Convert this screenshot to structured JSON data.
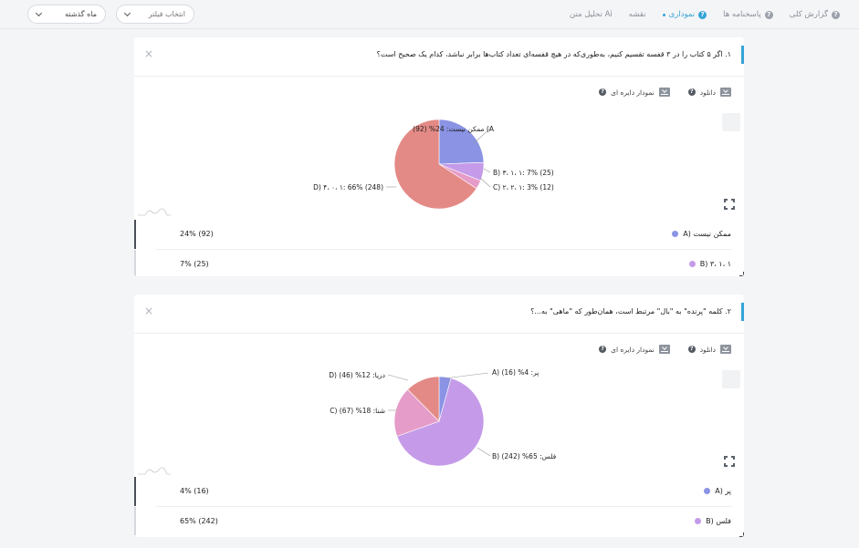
{
  "nav": {
    "tabs": [
      {
        "label": "گزارش کلی",
        "has_icon": true
      },
      {
        "label": "پاسخنامه ها",
        "has_icon": true
      },
      {
        "label": "نموداری",
        "has_icon": true,
        "active": true
      },
      {
        "label": "نقشه",
        "has_icon": false
      },
      {
        "label": "تحلیل متن Ai",
        "has_icon": false
      }
    ],
    "filter_placeholder": "انتخاب فیلتر",
    "period_value": "ماه گذشته"
  },
  "colors": {
    "accent": "#35a3d6",
    "slice_a": "#8a93e4",
    "slice_b": "#c59be9",
    "slice_c": "#e69cc8",
    "slice_d": "#e48a86"
  },
  "tools": {
    "download_label": "دانلود",
    "pie_chart_label": "نمودار دایره ای"
  },
  "questions": [
    {
      "text": "۱. اگر ۵ کتاب را در ۳ قفسه تقسیم کنیم، به‌طوری‌که در هیچ قفسه‌ای تعداد کتاب‌ها برابر نباشد، کدام یک صحیح است؟",
      "labels": {
        "a": "A) ممکن نیست: 24% (92)",
        "b": "B) ۳، ۱، ۱: 7% (25)",
        "c": "C) ۲، ۲، ۱: 3% (12)",
        "d": "D) ۴، ۰، ۱: 66% (248)"
      },
      "legend": [
        {
          "name": "ممکن نیست (A",
          "value": "24% (92)",
          "color": "#8a93e4"
        },
        {
          "name": "B) ۳، ۱، ۱",
          "value": "7% (25)",
          "color": "#c59be9"
        }
      ]
    },
    {
      "text": "۲. کلمه \"پرنده\" به \"بال\" مرتبط است، همان‌طور که \"ماهی\" به...؟",
      "labels": {
        "a": "A) پر: 4% (16)",
        "b": "B) فلس: 65% (242)",
        "c": "C) شنا: 18% (67)",
        "d": "D) دریا: 12% (46)"
      },
      "legend": [
        {
          "name": "پر (A",
          "value": "4% (16)",
          "color": "#8a93e4"
        },
        {
          "name": "فلس (B",
          "value": "65% (242)",
          "color": "#c59be9"
        }
      ]
    }
  ],
  "chart_data": [
    {
      "type": "pie",
      "title": "",
      "categories": [
        "A) ممکن نیست",
        "B) ۳، ۱، ۱",
        "C) ۲، ۲، ۱",
        "D) ۴، ۰، ۱"
      ],
      "values": [
        92,
        25,
        12,
        248
      ],
      "percents": [
        24,
        7,
        3,
        66
      ],
      "colors": [
        "#8a93e4",
        "#c59be9",
        "#e69cc8",
        "#e48a86"
      ]
    },
    {
      "type": "pie",
      "title": "",
      "categories": [
        "A) پر",
        "B) فلس",
        "C) شنا",
        "D) دریا"
      ],
      "values": [
        16,
        242,
        67,
        46
      ],
      "percents": [
        4,
        65,
        18,
        12
      ],
      "colors": [
        "#8a93e4",
        "#c59be9",
        "#e69cc8",
        "#e48a86"
      ]
    }
  ]
}
